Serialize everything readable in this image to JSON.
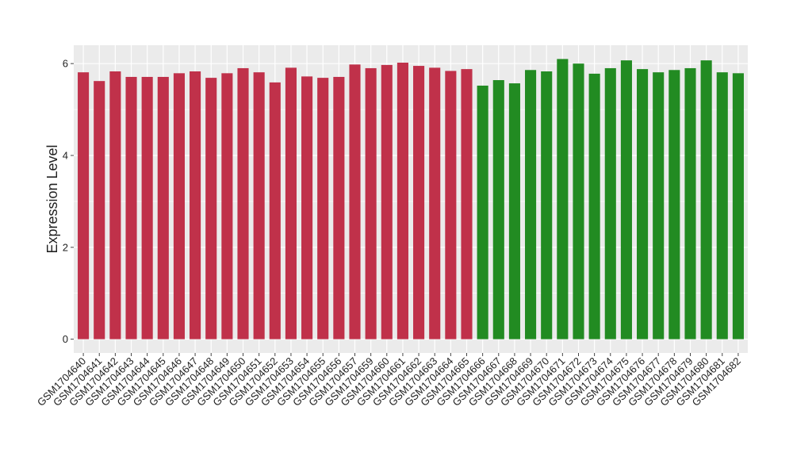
{
  "chart_data": {
    "type": "bar",
    "y_label": "Expression Level",
    "categories": [
      "GSM1704640",
      "GSM1704641",
      "GSM1704642",
      "GSM1704643",
      "GSM1704644",
      "GSM1704645",
      "GSM1704646",
      "GSM1704647",
      "GSM1704648",
      "GSM1704649",
      "GSM1704650",
      "GSM1704651",
      "GSM1704652",
      "GSM1704653",
      "GSM1704654",
      "GSM1704655",
      "GSM1704656",
      "GSM1704657",
      "GSM1704659",
      "GSM1704660",
      "GSM1704661",
      "GSM1704662",
      "GSM1704663",
      "GSM1704664",
      "GSM1704665",
      "GSM1704666",
      "GSM1704667",
      "GSM1704668",
      "GSM1704669",
      "GSM1704670",
      "GSM1704671",
      "GSM1704672",
      "GSM1704673",
      "GSM1704674",
      "GSM1704675",
      "GSM1704676",
      "GSM1704677",
      "GSM1704678",
      "GSM1704679",
      "GSM1704680",
      "GSM1704681",
      "GSM1704682"
    ],
    "values": [
      5.81,
      5.62,
      5.83,
      5.71,
      5.71,
      5.71,
      5.79,
      5.83,
      5.69,
      5.79,
      5.9,
      5.81,
      5.59,
      5.91,
      5.72,
      5.69,
      5.71,
      5.98,
      5.9,
      5.97,
      6.02,
      5.95,
      5.91,
      5.84,
      5.88,
      5.52,
      5.64,
      5.57,
      5.86,
      5.83,
      6.1,
      6.0,
      5.78,
      5.9,
      6.07,
      5.88,
      5.81,
      5.86,
      5.9,
      6.07,
      5.81,
      5.79
    ],
    "colors": [
      "#c0314a",
      "#c0314a",
      "#c0314a",
      "#c0314a",
      "#c0314a",
      "#c0314a",
      "#c0314a",
      "#c0314a",
      "#c0314a",
      "#c0314a",
      "#c0314a",
      "#c0314a",
      "#c0314a",
      "#c0314a",
      "#c0314a",
      "#c0314a",
      "#c0314a",
      "#c0314a",
      "#c0314a",
      "#c0314a",
      "#c0314a",
      "#c0314a",
      "#c0314a",
      "#c0314a",
      "#c0314a",
      "#228b22",
      "#228b22",
      "#228b22",
      "#228b22",
      "#228b22",
      "#228b22",
      "#228b22",
      "#228b22",
      "#228b22",
      "#228b22",
      "#228b22",
      "#228b22",
      "#228b22",
      "#228b22",
      "#228b22",
      "#228b22",
      "#228b22"
    ],
    "ylim": [
      -0.3,
      6.4
    ],
    "yticks": [
      0,
      2,
      4,
      6
    ],
    "y_minor_grid": [
      1,
      3,
      5
    ],
    "grid": true
  }
}
